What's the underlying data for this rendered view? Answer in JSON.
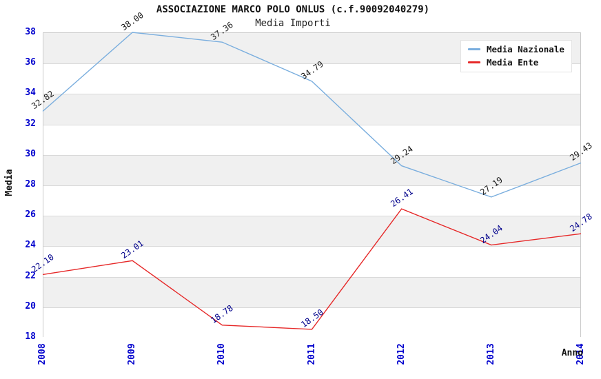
{
  "title": "ASSOCIAZIONE MARCO POLO ONLUS (c.f.90092040279)",
  "subtitle": "Media Importi",
  "chart_data": {
    "type": "line",
    "x": [
      2008,
      2009,
      2010,
      2011,
      2012,
      2013,
      2014
    ],
    "x_labels": [
      "2008",
      "2009",
      "2010",
      "2011",
      "2012",
      "2013",
      "2014"
    ],
    "xlabel": "Anno",
    "ylabel": "Media",
    "ylim": [
      18,
      38
    ],
    "ytick_step": 2,
    "ytick_labels": [
      "18",
      "20",
      "22",
      "24",
      "26",
      "28",
      "30",
      "32",
      "34",
      "36",
      "38"
    ],
    "grid": "horizontal",
    "band_fill": true,
    "legend_position": "top-right",
    "series": [
      {
        "name": "Media Nazionale",
        "color": "#7aaede",
        "label_color": "#1a1a1a",
        "values": [
          32.82,
          38.0,
          37.36,
          34.79,
          29.24,
          27.19,
          29.43
        ],
        "point_labels": [
          "32.82",
          "38.00",
          "37.36",
          "34.79",
          "29.24",
          "27.19",
          "29.43"
        ]
      },
      {
        "name": "Media Ente",
        "color": "#e62828",
        "label_color": "#00008b",
        "values": [
          22.1,
          23.01,
          18.78,
          18.5,
          26.41,
          24.04,
          24.78
        ],
        "point_labels": [
          "22.10",
          "23.01",
          "18.78",
          "18.50",
          "26.41",
          "24.04",
          "24.78"
        ]
      }
    ]
  },
  "colors": {
    "tick_label": "#0000cd",
    "band_gray": "#f0f0f0",
    "grid_line": "#d9d9d9",
    "plot_border": "#c9c9c9",
    "background": "#ffffff"
  }
}
